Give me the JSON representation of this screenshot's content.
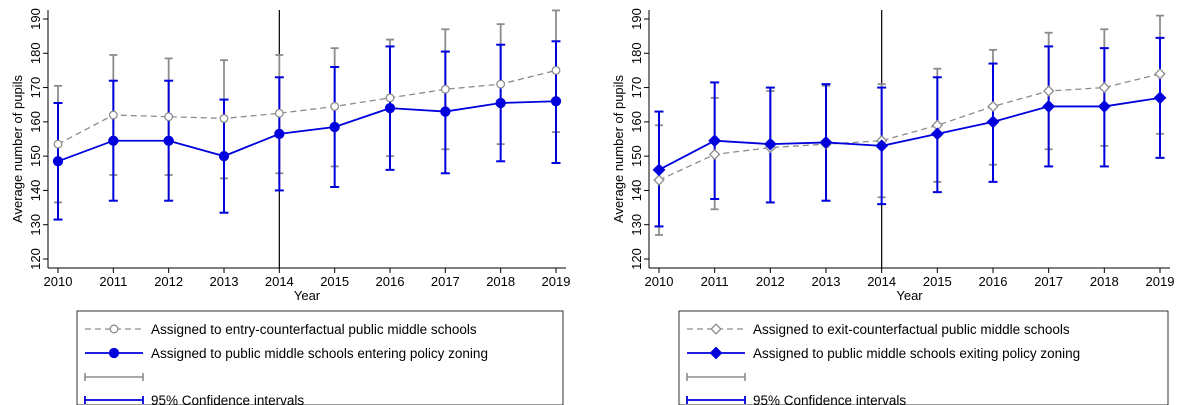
{
  "chart_data": [
    {
      "type": "line",
      "title": "",
      "xlabel": "Year",
      "ylabel": "Average number of pupils",
      "xlim": [
        2010,
        2019
      ],
      "ylim": [
        120,
        190
      ],
      "x": [
        2010,
        2011,
        2012,
        2013,
        2014,
        2015,
        2016,
        2017,
        2018,
        2019
      ],
      "yticks": [
        120,
        130,
        140,
        150,
        160,
        170,
        180,
        190
      ],
      "vline": 2014,
      "grid": false,
      "legend_position": "bottom",
      "series": [
        {
          "name": "Assigned to entry-counterfactual public middle schools",
          "color": "#8c8c8c",
          "style": "dashed",
          "marker": "circle-open",
          "values": [
            153.5,
            162,
            161.5,
            161,
            162.5,
            164.5,
            167,
            169.5,
            171,
            175
          ],
          "ci_low": [
            136.5,
            144.5,
            144.5,
            143.5,
            145,
            147,
            150,
            152,
            153.5,
            157
          ],
          "ci_high": [
            170.5,
            179.5,
            178.5,
            178,
            179.5,
            181.5,
            184,
            187,
            188.5,
            192.5
          ]
        },
        {
          "name": "Assigned to public middle schools entering policy zoning",
          "color": "#0000dd",
          "style": "solid",
          "marker": "circle-filled",
          "values": [
            148.5,
            154.5,
            154.5,
            150,
            156.5,
            158.5,
            164,
            163,
            165.5,
            166
          ],
          "ci_low": [
            131.5,
            137,
            137,
            133.5,
            140,
            141,
            146,
            145,
            148.5,
            148
          ],
          "ci_high": [
            165.5,
            172,
            172,
            166.5,
            173,
            176,
            182,
            180.5,
            182.5,
            183.5
          ]
        }
      ],
      "legend": {
        "entries": [
          "Assigned to entry-counterfactual public middle schools",
          "Assigned to public middle schools entering policy zoning",
          "",
          "95% Confidence intervals"
        ]
      }
    },
    {
      "type": "line",
      "title": "",
      "xlabel": "Year",
      "ylabel": "Average number of pupils",
      "xlim": [
        2010,
        2019
      ],
      "ylim": [
        120,
        190
      ],
      "x": [
        2010,
        2011,
        2012,
        2013,
        2014,
        2015,
        2016,
        2017,
        2018,
        2019
      ],
      "yticks": [
        120,
        130,
        140,
        150,
        160,
        170,
        180,
        190
      ],
      "vline": 2014,
      "grid": false,
      "legend_position": "bottom",
      "series": [
        {
          "name": "Assigned to exit-counterfactual public middle schools",
          "color": "#8c8c8c",
          "style": "dashed",
          "marker": "diamond-open",
          "values": [
            143,
            150.5,
            152.5,
            153.5,
            154.5,
            159,
            164.5,
            169,
            170,
            174
          ],
          "ci_low": [
            127,
            134.5,
            136.5,
            137,
            138,
            142.5,
            147.5,
            152,
            153,
            156.5
          ],
          "ci_high": [
            159,
            167,
            169,
            170.5,
            171,
            175.5,
            181,
            186,
            187,
            191
          ]
        },
        {
          "name": "Assigned to public middle schools exiting policy zoning",
          "color": "#0000dd",
          "style": "solid",
          "marker": "diamond-filled",
          "values": [
            146,
            154.5,
            153.5,
            154,
            153,
            156.5,
            160,
            164.5,
            164.5,
            167
          ],
          "ci_low": [
            129.5,
            137.5,
            136.5,
            137,
            136,
            139.5,
            142.5,
            147,
            147,
            149.5
          ],
          "ci_high": [
            163,
            171.5,
            170,
            171,
            170,
            173,
            177,
            182,
            181.5,
            184.5
          ]
        }
      ],
      "legend": {
        "entries": [
          "Assigned to exit-counterfactual public middle schools",
          "Assigned to public middle schools exiting policy zoning",
          "",
          "95% Confidence intervals"
        ]
      }
    }
  ]
}
